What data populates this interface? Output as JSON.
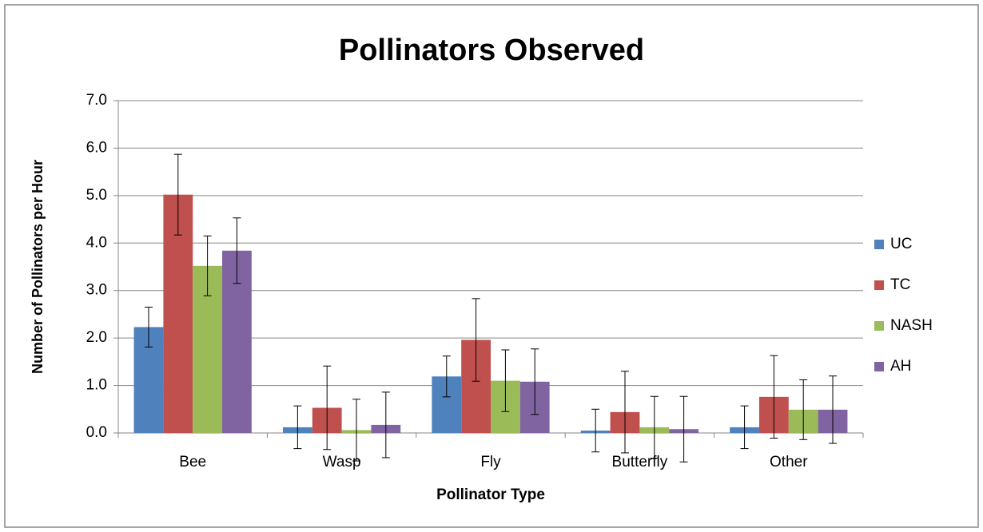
{
  "chart_data": {
    "type": "bar",
    "title": "Pollinators Observed",
    "x_label": "Pollinator Type",
    "y_label": "Number of Pollinators per Hour",
    "categories": [
      "Bee",
      "Wasp",
      "Fly",
      "Butterfly",
      "Other"
    ],
    "series": [
      {
        "name": "UC",
        "color": "#4f81bd",
        "values": [
          2.23,
          0.12,
          1.19,
          0.05,
          0.12
        ],
        "errors": [
          0.42,
          0.45,
          0.43,
          0.45,
          0.45
        ]
      },
      {
        "name": "TC",
        "color": "#c0504d",
        "values": [
          5.02,
          0.53,
          1.96,
          0.44,
          0.76
        ],
        "errors": [
          0.85,
          0.88,
          0.87,
          0.86,
          0.87
        ]
      },
      {
        "name": "NASH",
        "color": "#9bbb59",
        "values": [
          3.52,
          0.06,
          1.1,
          0.12,
          0.49
        ],
        "errors": [
          0.63,
          0.65,
          0.65,
          0.65,
          0.63
        ]
      },
      {
        "name": "AH",
        "color": "#8064a2",
        "values": [
          3.84,
          0.17,
          1.08,
          0.08,
          0.49
        ],
        "errors": [
          0.69,
          0.69,
          0.69,
          0.69,
          0.71
        ]
      }
    ],
    "ylim": [
      0,
      7
    ],
    "yticks": [
      {
        "value": 0,
        "label": "0.0"
      },
      {
        "value": 1,
        "label": "1.0"
      },
      {
        "value": 2,
        "label": "2.0"
      },
      {
        "value": 3,
        "label": "3.0"
      },
      {
        "value": 4,
        "label": "4.0"
      },
      {
        "value": 5,
        "label": "5.0"
      },
      {
        "value": 6,
        "label": "6.0"
      },
      {
        "value": 7,
        "label": "7.0"
      }
    ],
    "grid": true,
    "legend": "right"
  }
}
